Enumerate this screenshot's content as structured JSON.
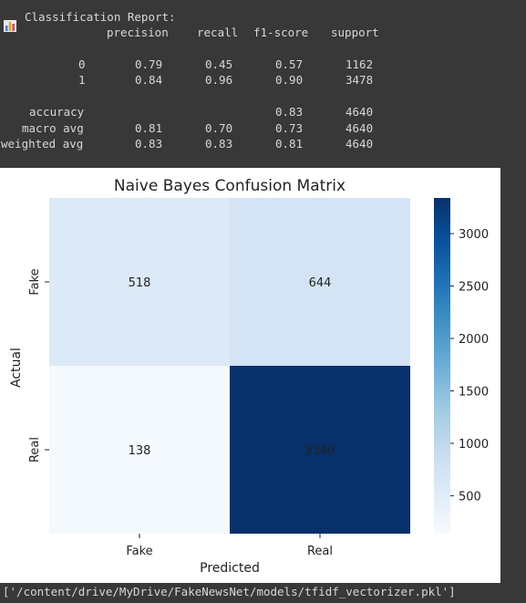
{
  "report": {
    "title": "Classification Report:",
    "headers": [
      "precision",
      "recall",
      "f1-score",
      "support"
    ],
    "rows": [
      {
        "label": "0",
        "precision": "0.79",
        "recall": "0.45",
        "f1": "0.57",
        "support": "1162"
      },
      {
        "label": "1",
        "precision": "0.84",
        "recall": "0.96",
        "f1": "0.90",
        "support": "3478"
      },
      {
        "label": "accuracy",
        "precision": "",
        "recall": "",
        "f1": "0.83",
        "support": "4640"
      },
      {
        "label": "macro avg",
        "precision": "0.81",
        "recall": "0.70",
        "f1": "0.73",
        "support": "4640"
      },
      {
        "label": "weighted avg",
        "precision": "0.83",
        "recall": "0.83",
        "f1": "0.81",
        "support": "4640"
      }
    ]
  },
  "chart_data": {
    "type": "heatmap",
    "title": "Naive Bayes Confusion Matrix",
    "xlabel": "Predicted",
    "ylabel": "Actual",
    "x_categories": [
      "Fake",
      "Real"
    ],
    "y_categories": [
      "Fake",
      "Real"
    ],
    "values": [
      [
        518,
        644
      ],
      [
        138,
        3340
      ]
    ],
    "colormap": "Blues",
    "colorbar_range": [
      138,
      3340
    ],
    "colorbar_ticks": [
      "3000",
      "2500",
      "2000",
      "1500",
      "1000",
      "500"
    ],
    "colors": {
      "c518": "#dce9f6",
      "c644": "#d4e4f4",
      "c138": "#f4f9fe",
      "c3340": "#08306b"
    }
  },
  "output": {
    "path": "['/content/drive/MyDrive/FakeNewsNet/models/tfidf_vectorizer.pkl']"
  }
}
